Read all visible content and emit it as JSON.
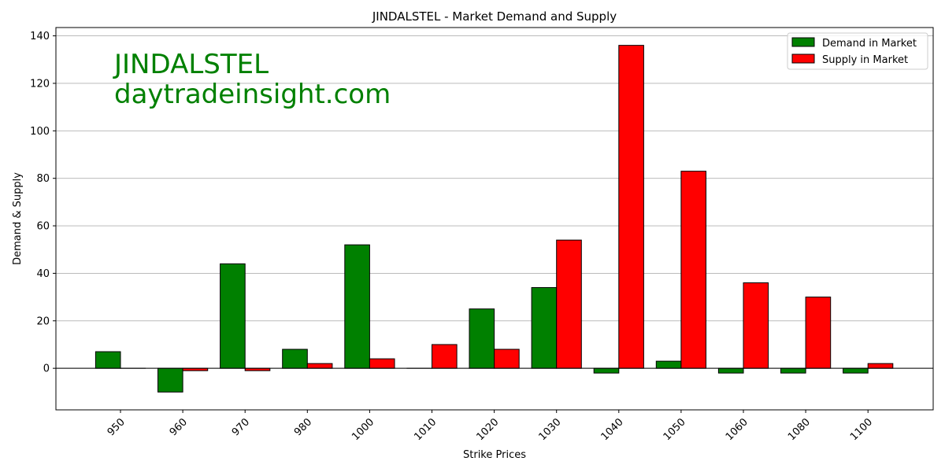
{
  "chart_data": {
    "type": "bar",
    "title": "JINDALSTEL - Market Demand and Supply",
    "xlabel": "Strike Prices",
    "ylabel": "Demand & Supply",
    "categories": [
      "950",
      "960",
      "970",
      "980",
      "1000",
      "1010",
      "1020",
      "1030",
      "1040",
      "1050",
      "1060",
      "1080",
      "1100"
    ],
    "series": [
      {
        "name": "Demand in Market",
        "color": "#008000",
        "values": [
          7,
          -10,
          44,
          8,
          52,
          0,
          25,
          34,
          -2,
          3,
          -2,
          -2,
          -2
        ]
      },
      {
        "name": "Supply in Market",
        "color": "#ff0000",
        "values": [
          0,
          -1,
          -1,
          2,
          4,
          10,
          8,
          54,
          136,
          83,
          36,
          30,
          2
        ]
      }
    ],
    "ylim": [
      -17.5,
      143.5
    ],
    "yticks": [
      0,
      20,
      40,
      60,
      80,
      100,
      120,
      140
    ],
    "ytick_labels": [
      "0",
      "20",
      "40",
      "60",
      "80",
      "100",
      "120",
      "140"
    ],
    "grid": "y",
    "legend": "top-right",
    "watermark": [
      "JINDALSTEL",
      "daytradeinsight.com"
    ]
  }
}
